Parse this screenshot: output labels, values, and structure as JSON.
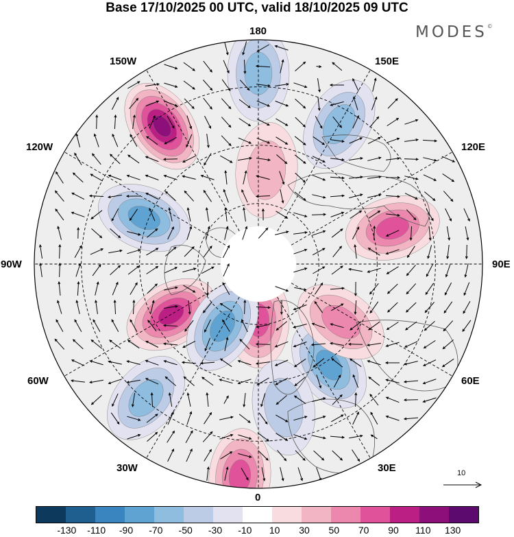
{
  "title": "Base 17/10/2025 00 UTC, valid 18/10/2025 09 UTC",
  "brand": "MODES",
  "brand_mark": "©",
  "longitude_labels": {
    "top": "180",
    "top_left": "150W",
    "top_right": "150E",
    "upper_left": "120W",
    "upper_right": "120E",
    "left": "90W",
    "right": "90E",
    "lower_left": "60W",
    "lower_right": "60E",
    "bottom_left": "30W",
    "bottom_right": "30E",
    "bottom": "0"
  },
  "reference_vector": {
    "value": "10",
    "arrow_icon": "arrow-right-icon"
  },
  "colorbar": {
    "colors": [
      "#0d3a5c",
      "#1f5f8f",
      "#3a84bf",
      "#5fa3d3",
      "#8fbde0",
      "#bccce6",
      "#e2e2f0",
      "#ffffff",
      "#f8dce0",
      "#f2b5c4",
      "#ec88ad",
      "#e0529a",
      "#bc1f84",
      "#8c0f7a",
      "#5c0a6e"
    ],
    "tick_labels": [
      "-130",
      "-110",
      "-90",
      "-70",
      "-50",
      "-30",
      "-10",
      "10",
      "30",
      "50",
      "70",
      "90",
      "110",
      "130"
    ]
  },
  "anomaly_centers": [
    {
      "name": "center-pos-1",
      "value": 80,
      "r": 0.25,
      "deg": 0
    },
    {
      "name": "center-neg-1",
      "value": -70,
      "r": 0.55,
      "deg": 35
    },
    {
      "name": "center-pos-2",
      "value": 70,
      "r": 0.62,
      "deg": 105
    },
    {
      "name": "center-neg-2",
      "value": -60,
      "r": 0.72,
      "deg": 150
    },
    {
      "name": "center-pos-3",
      "value": 110,
      "r": 0.75,
      "deg": 215
    },
    {
      "name": "center-neg-3",
      "value": -70,
      "r": 0.55,
      "deg": 248
    },
    {
      "name": "center-pos-4",
      "value": 100,
      "r": 0.45,
      "deg": 300
    },
    {
      "name": "center-neg-4",
      "value": -70,
      "r": 0.32,
      "deg": 330
    },
    {
      "name": "center-neg-5",
      "value": -60,
      "r": 0.78,
      "deg": 320
    },
    {
      "name": "center-pos-5",
      "value": 80,
      "r": 0.95,
      "deg": 355
    },
    {
      "name": "center-pos-6",
      "value": 60,
      "r": 0.45,
      "deg": 55
    },
    {
      "name": "center-neg-6",
      "value": -40,
      "r": 0.65,
      "deg": 10
    },
    {
      "name": "center-pos-7",
      "value": 40,
      "r": 0.42,
      "deg": 175
    },
    {
      "name": "center-neg-7",
      "value": -50,
      "r": 0.85,
      "deg": 180
    }
  ]
}
